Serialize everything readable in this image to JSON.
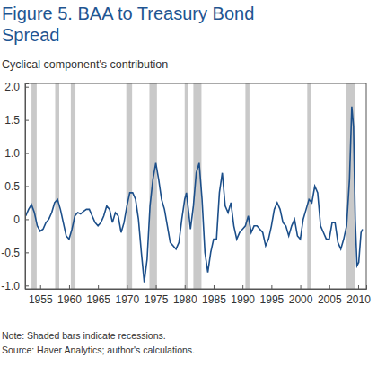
{
  "chart_data": {
    "type": "line",
    "title": [
      "Figure 5. BAA to Treasury Bond",
      "Spread"
    ],
    "subtitle": "Cyclical component's contribution",
    "notes": [
      "Note: Shaded bars indicate recessions.",
      "Source: Haver Analytics; author's calculations."
    ],
    "xlim": [
      1952.4,
      2011.4
    ],
    "xticks": [
      1955,
      1960,
      1965,
      1970,
      1975,
      1980,
      1985,
      1990,
      1995,
      2000,
      2005,
      2010
    ],
    "ylim": [
      -1.05,
      2.05
    ],
    "yticks": [
      {
        "value": -1.0,
        "label": "-1.0"
      },
      -0.5,
      0,
      0.5,
      {
        "value": 1.0,
        "label": "1.0"
      },
      1.5,
      {
        "value": 2.0,
        "label": "2.0"
      }
    ],
    "grid": false,
    "recessions": [
      [
        1953.5,
        1954.4
      ],
      [
        1957.6,
        1958.3
      ],
      [
        1960.3,
        1961.1
      ],
      [
        1969.9,
        1970.9
      ],
      [
        1973.9,
        1975.2
      ],
      [
        1980.0,
        1980.5
      ],
      [
        1981.5,
        1982.9
      ],
      [
        1990.5,
        1991.2
      ],
      [
        2001.2,
        2001.9
      ],
      [
        2007.9,
        2009.5
      ]
    ],
    "x": [
      1952.5,
      1953,
      1953.5,
      1954,
      1954.5,
      1955,
      1955.5,
      1956,
      1956.5,
      1957,
      1957.5,
      1958,
      1958.5,
      1959,
      1959.5,
      1960,
      1960.5,
      1961,
      1961.5,
      1962,
      1962.5,
      1963,
      1963.5,
      1964,
      1964.5,
      1965,
      1965.5,
      1966,
      1966.5,
      1967,
      1967.5,
      1968,
      1968.5,
      1969,
      1969.5,
      1970,
      1970.5,
      1971,
      1971.5,
      1972,
      1972.5,
      1973,
      1973.5,
      1974,
      1974.5,
      1975,
      1975.5,
      1976,
      1976.5,
      1977,
      1977.5,
      1978,
      1978.5,
      1979,
      1979.5,
      1980,
      1980.3,
      1980.7,
      1981,
      1981.5,
      1982,
      1982.5,
      1983,
      1983.5,
      1984,
      1984.5,
      1985,
      1985.5,
      1986,
      1986.5,
      1987,
      1987.5,
      1988,
      1988.5,
      1989,
      1989.5,
      1990,
      1990.5,
      1991,
      1991.5,
      1992,
      1992.5,
      1993,
      1993.5,
      1994,
      1994.5,
      1995,
      1995.5,
      1996,
      1996.5,
      1997,
      1997.5,
      1998,
      1998.5,
      1999,
      1999.5,
      2000,
      2000.5,
      2001,
      2001.5,
      2002,
      2002.5,
      2003,
      2003.5,
      2004,
      2004.5,
      2005,
      2005.5,
      2006,
      2006.5,
      2007,
      2007.5,
      2008,
      2008.5,
      2008.9,
      2009.2,
      2009.5,
      2009.8,
      2010.1,
      2010.5,
      2010.75
    ],
    "series": [
      {
        "color": "#1c4f8a",
        "values": [
          0.05,
          0.15,
          0.22,
          0.1,
          -0.1,
          -0.18,
          -0.15,
          -0.05,
          0.0,
          0.1,
          0.25,
          0.3,
          0.15,
          -0.05,
          -0.25,
          -0.3,
          -0.15,
          0.05,
          0.1,
          0.08,
          0.12,
          0.15,
          0.15,
          0.05,
          -0.05,
          -0.1,
          -0.05,
          0.05,
          0.2,
          0.15,
          -0.05,
          0.1,
          0.05,
          -0.2,
          -0.05,
          0.2,
          0.4,
          0.4,
          0.3,
          0.0,
          -0.5,
          -0.95,
          -0.6,
          0.2,
          0.6,
          0.85,
          0.6,
          0.3,
          0.15,
          -0.1,
          -0.35,
          -0.4,
          -0.45,
          -0.35,
          0.0,
          0.3,
          0.4,
          0.1,
          -0.15,
          0.2,
          0.7,
          0.85,
          0.3,
          -0.5,
          -0.8,
          -0.5,
          -0.3,
          -0.3,
          0.4,
          0.7,
          0.2,
          0.1,
          0.25,
          -0.1,
          -0.3,
          -0.2,
          -0.15,
          -0.1,
          0.05,
          -0.2,
          -0.1,
          -0.1,
          -0.15,
          -0.2,
          -0.4,
          -0.3,
          -0.1,
          0.15,
          0.25,
          0.15,
          -0.05,
          -0.1,
          -0.25,
          -0.1,
          0.0,
          -0.25,
          -0.3,
          0.0,
          0.15,
          0.3,
          0.25,
          0.5,
          0.4,
          -0.1,
          -0.2,
          -0.3,
          -0.3,
          -0.05,
          -0.05,
          -0.35,
          -0.45,
          -0.3,
          -0.1,
          0.6,
          1.7,
          1.4,
          0.0,
          -0.7,
          -0.65,
          -0.2,
          -0.15
        ]
      }
    ]
  }
}
